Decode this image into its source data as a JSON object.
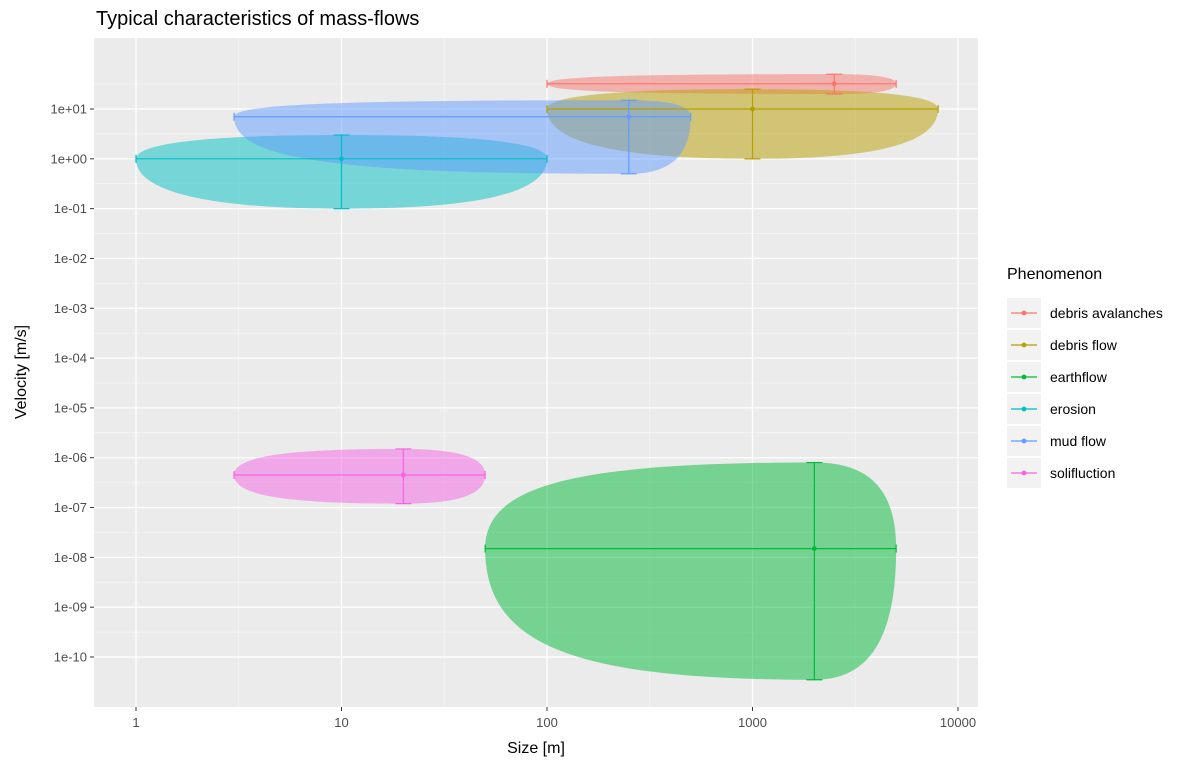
{
  "chart_data": {
    "type": "scatter",
    "title": "Typical characteristics of mass-flows",
    "xlabel": "Size [m]",
    "ylabel": "Velocity [m/s]",
    "x_scale": "log10",
    "y_scale": "log10",
    "xlim": [
      0.63,
      11000
    ],
    "ylim": [
      1e-11,
      1000
    ],
    "x_ticks": [
      1,
      10,
      100,
      1000,
      10000
    ],
    "x_tick_labels": [
      "1",
      "10",
      "100",
      "1000",
      "10000"
    ],
    "y_ticks": [
      1e-10,
      1e-09,
      1e-08,
      1e-07,
      1e-06,
      1e-05,
      0.0001,
      0.001,
      0.01,
      0.1,
      1,
      10
    ],
    "y_tick_labels": [
      "1e-10",
      "1e-09",
      "1e-08",
      "1e-07",
      "1e-06",
      "1e-05",
      "1e-04",
      "1e-03",
      "1e-02",
      "1e-01",
      "1e+00",
      "1e+01"
    ],
    "grid": true,
    "legend_position": "right",
    "legend_title": "Phenomenon",
    "series": [
      {
        "name": "debris avalanches",
        "color": "#F8766D",
        "x": 2500,
        "y": 32,
        "x_range": [
          100,
          5000
        ],
        "y_range": [
          20,
          50
        ]
      },
      {
        "name": "debris flow",
        "color": "#B79F00",
        "x": 1000,
        "y": 10,
        "x_range": [
          100,
          8000
        ],
        "y_range": [
          1,
          25
        ]
      },
      {
        "name": "earthflow",
        "color": "#00BA38",
        "x": 2000,
        "y": 1.5e-08,
        "x_range": [
          50,
          5000
        ],
        "y_range": [
          3.5e-11,
          8e-07
        ]
      },
      {
        "name": "erosion",
        "color": "#00BFC4",
        "x": 10,
        "y": 1,
        "x_range": [
          1,
          100
        ],
        "y_range": [
          0.1,
          3
        ]
      },
      {
        "name": "mud flow",
        "color": "#619CFF",
        "x": 250,
        "y": 7,
        "x_range": [
          3,
          500
        ],
        "y_range": [
          0.5,
          15
        ]
      },
      {
        "name": "solifluction",
        "color": "#F564E3",
        "x": 20,
        "y": 4.5e-07,
        "x_range": [
          3,
          50
        ],
        "y_range": [
          1.2e-07,
          1.5e-06
        ]
      }
    ]
  }
}
